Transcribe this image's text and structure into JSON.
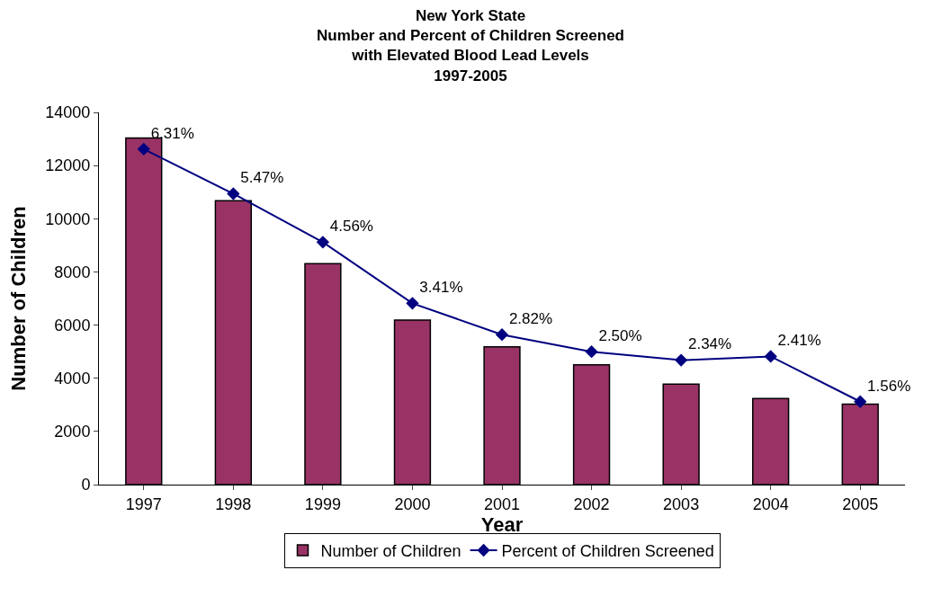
{
  "chart_data": {
    "type": "bar",
    "title": "New York State\nNumber and Percent of Children Screened\nwith Elevated Blood Lead Levels\n1997-2005",
    "xlabel": "Year",
    "ylabel": "Number of Children",
    "categories": [
      "1997",
      "1998",
      "1999",
      "2000",
      "2001",
      "2002",
      "2003",
      "2004",
      "2005"
    ],
    "series": [
      {
        "name": "Number of Children",
        "color": "#993366",
        "values": [
          13040,
          10680,
          8310,
          6190,
          5180,
          4510,
          3780,
          3240,
          3030
        ]
      },
      {
        "name": "Percent of Children Screened",
        "type": "line",
        "axis": "y2",
        "color": "#000080",
        "marker": "diamond",
        "values": [
          6.31,
          5.47,
          4.56,
          3.41,
          2.82,
          2.5,
          2.34,
          2.41,
          1.56
        ],
        "value_labels": [
          "6.31%",
          "5.47%",
          "4.56%",
          "3.41%",
          "2.82%",
          "2.50%",
          "2.34%",
          "2.41%",
          "1.56%"
        ]
      }
    ],
    "ylim": [
      0,
      14000
    ],
    "yticks": [
      0,
      2000,
      4000,
      6000,
      8000,
      10000,
      12000,
      14000
    ],
    "y2lim": [
      0,
      7
    ],
    "legend": "bottom"
  }
}
